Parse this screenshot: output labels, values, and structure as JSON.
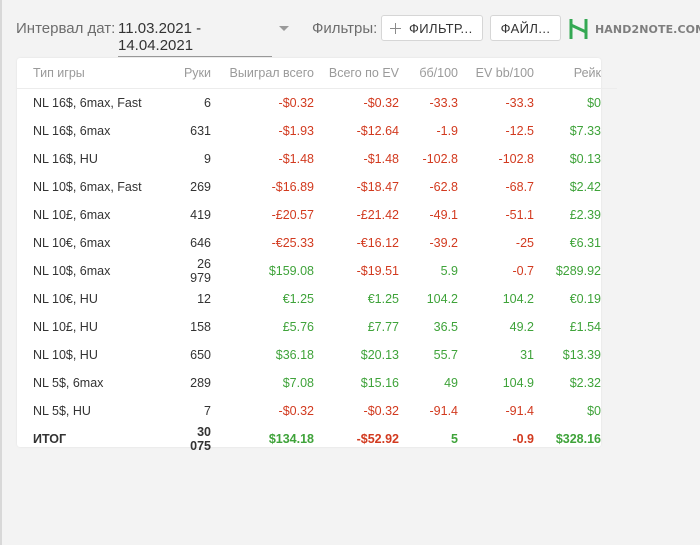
{
  "header": {
    "interval_label": "Интервал дат:",
    "date_range": "11.03.2021 - 14.04.2021",
    "filters_label": "Фильтры:",
    "filters_button": "ФИЛЬТР...",
    "file_button": "ФАЙЛ...",
    "logo_text": "HAND2NOTE.COM"
  },
  "table": {
    "columns": [
      "Тип игры",
      "Руки",
      "Выиграл всего",
      "Всего по EV",
      "бб/100",
      "EV bb/100",
      "Рейк"
    ],
    "rows": [
      {
        "game": "NL 16$, 6max, Fast",
        "hands": "6",
        "won": "-$0.32",
        "ev": "-$0.32",
        "bb100": "-33.3",
        "evbb100": "-33.3",
        "rake": "$0"
      },
      {
        "game": "NL 16$, 6max",
        "hands": "631",
        "won": "-$1.93",
        "ev": "-$12.64",
        "bb100": "-1.9",
        "evbb100": "-12.5",
        "rake": "$7.33"
      },
      {
        "game": "NL 16$, HU",
        "hands": "9",
        "won": "-$1.48",
        "ev": "-$1.48",
        "bb100": "-102.8",
        "evbb100": "-102.8",
        "rake": "$0.13"
      },
      {
        "game": "NL 10$, 6max, Fast",
        "hands": "269",
        "won": "-$16.89",
        "ev": "-$18.47",
        "bb100": "-62.8",
        "evbb100": "-68.7",
        "rake": "$2.42"
      },
      {
        "game": "NL 10£, 6max",
        "hands": "419",
        "won": "-£20.57",
        "ev": "-£21.42",
        "bb100": "-49.1",
        "evbb100": "-51.1",
        "rake": "£2.39"
      },
      {
        "game": "NL 10€, 6max",
        "hands": "646",
        "won": "-€25.33",
        "ev": "-€16.12",
        "bb100": "-39.2",
        "evbb100": "-25",
        "rake": "€6.31"
      },
      {
        "game": "NL 10$, 6max",
        "hands": "26 979",
        "won": "$159.08",
        "ev": "-$19.51",
        "bb100": "5.9",
        "evbb100": "-0.7",
        "rake": "$289.92"
      },
      {
        "game": "NL 10€, HU",
        "hands": "12",
        "won": "€1.25",
        "ev": "€1.25",
        "bb100": "104.2",
        "evbb100": "104.2",
        "rake": "€0.19"
      },
      {
        "game": "NL 10£, HU",
        "hands": "158",
        "won": "£5.76",
        "ev": "£7.77",
        "bb100": "36.5",
        "evbb100": "49.2",
        "rake": "£1.54"
      },
      {
        "game": "NL 10$, HU",
        "hands": "650",
        "won": "$36.18",
        "ev": "$20.13",
        "bb100": "55.7",
        "evbb100": "31",
        "rake": "$13.39"
      },
      {
        "game": "NL 5$, 6max",
        "hands": "289",
        "won": "$7.08",
        "ev": "$15.16",
        "bb100": "49",
        "evbb100": "104.9",
        "rake": "$2.32"
      },
      {
        "game": "NL 5$, HU",
        "hands": "7",
        "won": "-$0.32",
        "ev": "-$0.32",
        "bb100": "-91.4",
        "evbb100": "-91.4",
        "rake": "$0"
      }
    ],
    "total": {
      "game": "ИТОГ",
      "hands": "30 075",
      "won": "$134.18",
      "ev": "-$52.92",
      "bb100": "5",
      "evbb100": "-0.9",
      "rake": "$328.16"
    }
  },
  "colors": {
    "positive": "#3fa33a",
    "negative": "#d23a1f",
    "logo_green": "#34a853"
  }
}
